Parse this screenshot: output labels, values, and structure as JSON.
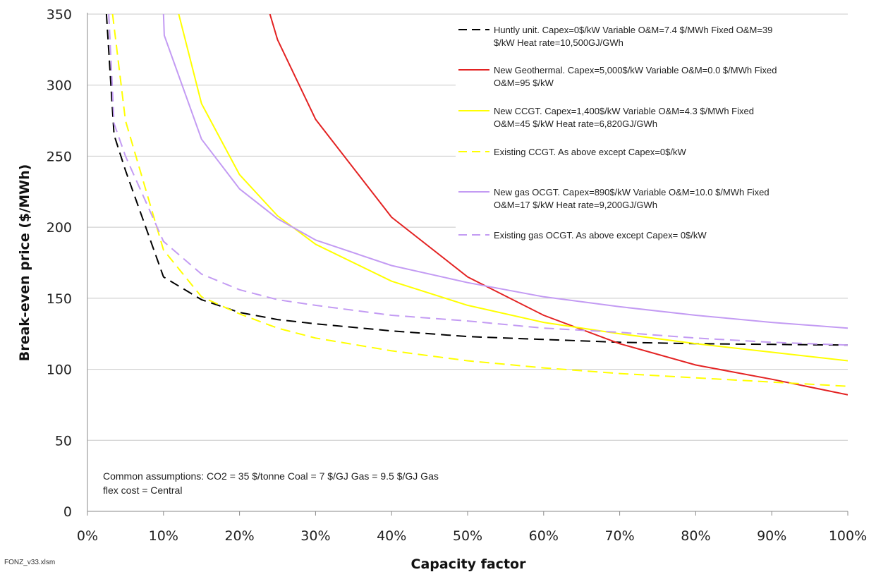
{
  "source_file": "FONZ_v33.xlsm",
  "note": {
    "lines": [
      "Common assumptions:  CO2 = 35 $/tonne  Coal = 7 $/GJ  Gas = 9.5 $/GJ  Gas",
      "flex cost = Central"
    ]
  },
  "chart_data": {
    "type": "line",
    "title": "",
    "xlabel": "Capacity factor",
    "ylabel": "Break-even price ($/MWh)",
    "xlim": [
      0,
      1
    ],
    "ylim": [
      0,
      350
    ],
    "x_ticks": [
      0,
      0.1,
      0.2,
      0.3,
      0.4,
      0.5,
      0.6,
      0.7,
      0.8,
      0.9,
      1.0
    ],
    "x_tick_labels": [
      "0%",
      "10%",
      "20%",
      "30%",
      "40%",
      "50%",
      "60%",
      "70%",
      "80%",
      "90%",
      "100%"
    ],
    "y_ticks": [
      0,
      50,
      100,
      150,
      200,
      250,
      300,
      350
    ],
    "y_tick_labels": [
      "0",
      "50",
      "100",
      "150",
      "200",
      "250",
      "300",
      "350"
    ],
    "grid": "horizontal",
    "legend_position": "top-right",
    "series": [
      {
        "name": "Huntly unit.  Capex=0$/kW  Variable O&M=7.4 $/MWh  Fixed O&M=39 $/kW  Heat rate=10,500GJ/GWh",
        "legend_lines": [
          "Huntly unit.  Capex=0$/kW  Variable O&M=7.4 $/MWh  Fixed O&M=39",
          "$/kW  Heat rate=10,500GJ/GWh"
        ],
        "color": "#000000",
        "dashed": true,
        "x": [
          0.025,
          0.035,
          0.05,
          0.1,
          0.15,
          0.2,
          0.25,
          0.3,
          0.4,
          0.5,
          0.6,
          0.7,
          0.8,
          0.9,
          1.0
        ],
        "y": [
          350,
          265,
          240,
          165,
          149,
          140,
          135,
          132,
          127,
          123,
          121,
          119,
          118,
          117.5,
          117
        ]
      },
      {
        "name": "New Geothermal.  Capex=5,000$/kW  Variable O&M=0.0 $/MWh  Fixed O&M=95 $/kW",
        "legend_lines": [
          "New Geothermal.  Capex=5,000$/kW  Variable O&M=0.0 $/MWh   Fixed",
          "O&M=95 $/kW"
        ],
        "color": "#e32222",
        "dashed": false,
        "x": [
          0.24,
          0.25,
          0.3,
          0.4,
          0.5,
          0.6,
          0.7,
          0.8,
          0.9,
          1.0
        ],
        "y": [
          350,
          332,
          276,
          207,
          165,
          138,
          118,
          103,
          93,
          82
        ]
      },
      {
        "name": "New CCGT.  Capex=1,400$/kW  Variable O&M=4.3 $/MWh  Fixed O&M=45 $/kW  Heat rate=6,820GJ/GWh",
        "legend_lines": [
          "New CCGT.   Capex=1,400$/kW  Variable O&M=4.3 $/MWh   Fixed",
          "O&M=45 $/kW  Heat rate=6,820GJ/GWh"
        ],
        "color": "#ffff00",
        "dashed": false,
        "x": [
          0.12,
          0.15,
          0.2,
          0.25,
          0.3,
          0.4,
          0.5,
          0.6,
          0.7,
          0.8,
          0.9,
          1.0
        ],
        "y": [
          350,
          287,
          237,
          208,
          188,
          162,
          145,
          133,
          125,
          118,
          112,
          106
        ]
      },
      {
        "name": "Existing CCGT.  As above except  Capex=0$/kW",
        "legend_lines": [
          "Existing CCGT.  As above except  Capex=0$/kW"
        ],
        "color": "#ffff00",
        "dashed": true,
        "x": [
          0.033,
          0.05,
          0.1,
          0.15,
          0.2,
          0.25,
          0.3,
          0.4,
          0.5,
          0.6,
          0.7,
          0.8,
          0.9,
          1.0
        ],
        "y": [
          350,
          275,
          184,
          151,
          139,
          129,
          122,
          113,
          106,
          101,
          97,
          94,
          91,
          88
        ]
      },
      {
        "name": "New gas OCGT.  Capex=890$/kW  Variable O&M=10.0 $/MWh  Fixed O&M=17 $/kW  Heat rate=9,200GJ/GWh",
        "legend_lines": [
          "New gas OCGT.   Capex=890$/kW  Variable O&M=10.0 $/MWh   Fixed",
          "O&M=17 $/kW  Heat rate=9,200GJ/GWh"
        ],
        "color": "#c39bf3",
        "dashed": false,
        "x": [
          0.1,
          0.101,
          0.15,
          0.2,
          0.25,
          0.3,
          0.4,
          0.5,
          0.6,
          0.7,
          0.8,
          0.9,
          1.0
        ],
        "y": [
          350,
          335,
          262,
          227,
          206,
          191,
          173,
          161,
          151,
          144,
          138,
          133,
          129
        ]
      },
      {
        "name": "Existing gas OCGT.  As above except  Capex= 0$/kW",
        "legend_lines": [
          "Existing gas OCGT.  As above except  Capex= 0$/kW"
        ],
        "color": "#c39bf3",
        "dashed": true,
        "x": [
          0.028,
          0.035,
          0.05,
          0.1,
          0.15,
          0.2,
          0.25,
          0.3,
          0.4,
          0.5,
          0.6,
          0.7,
          0.8,
          0.9,
          1.0
        ],
        "y": [
          350,
          273,
          250,
          190,
          167,
          156,
          149,
          145,
          138,
          134,
          129,
          126,
          122,
          119,
          117
        ]
      }
    ]
  }
}
